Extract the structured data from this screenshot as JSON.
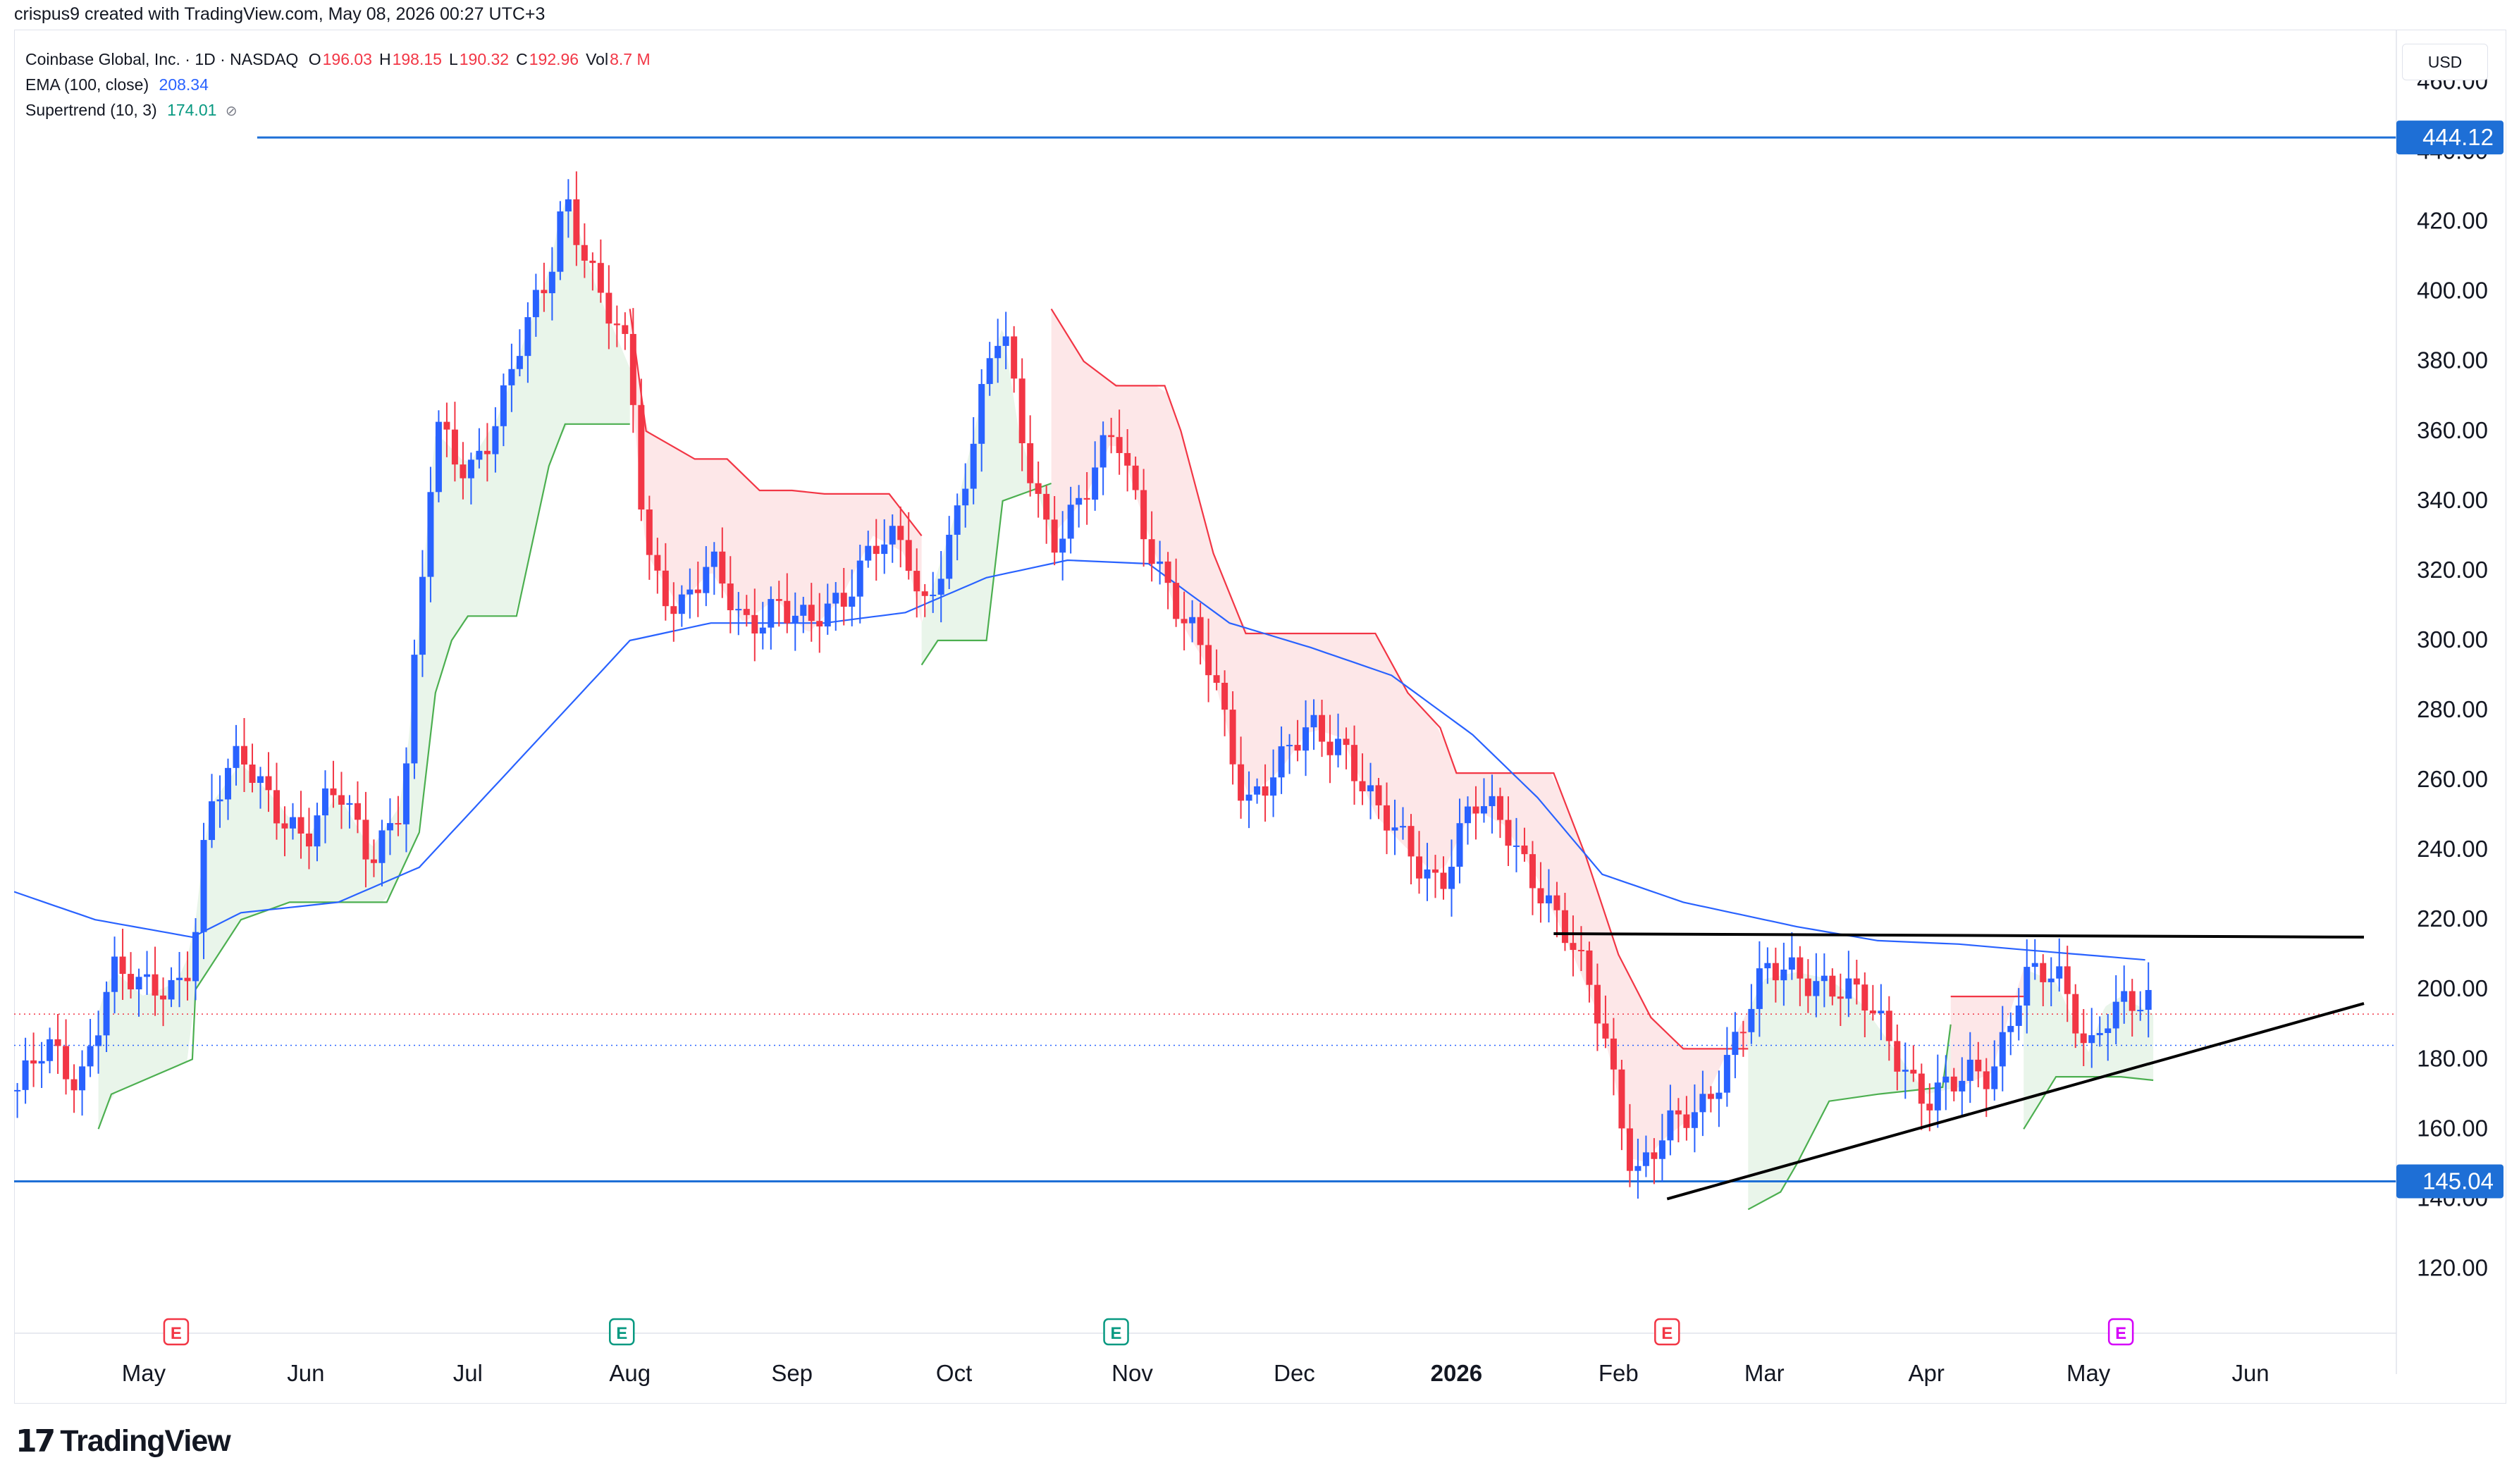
{
  "header": {
    "creator_line": "crispus9 created with TradingView.com, May 08, 2026 00:27 UTC+3"
  },
  "legend": {
    "symbol": "Coinbase Global, Inc. · 1D · NASDAQ",
    "ohlc": [
      {
        "key": "O",
        "value": "196.03"
      },
      {
        "key": "H",
        "value": "198.15"
      },
      {
        "key": "L",
        "value": "190.32"
      },
      {
        "key": "C",
        "value": "192.96"
      },
      {
        "key": "Vol",
        "value": "8.7 M"
      }
    ],
    "ema_label": "EMA (100, close)",
    "ema_value": "208.34",
    "supertrend_label": "Supertrend (10, 3)",
    "supertrend_value": "174.01",
    "eye_icon": "hidden-eye-icon"
  },
  "currency": "USD",
  "brand": {
    "mark": "17",
    "name": "TradingView"
  },
  "colors": {
    "up": "#2962ff",
    "down": "#f23645",
    "ema": "#2962ff",
    "supertrend_up": "#4caf50",
    "supertrend_down": "#f23645",
    "level_line": "#1e6fd6",
    "trend_line": "#000000",
    "earnings": "#f23645",
    "earnings_green": "#089981",
    "earnings_future": "#d500f9"
  },
  "chart_data": {
    "type": "candlestick",
    "title": "Coinbase Global, Inc. · 1D · NASDAQ",
    "ylim": [
      110,
      470
    ],
    "y_ticks": [
      "120.00",
      "140.00",
      "160.00",
      "180.00",
      "200.00",
      "220.00",
      "240.00",
      "260.00",
      "280.00",
      "300.00",
      "320.00",
      "340.00",
      "360.00",
      "380.00",
      "400.00",
      "420.00",
      "440.00",
      "460.00"
    ],
    "x_ticks": [
      {
        "label": "May",
        "x": 0.8,
        "bold": false
      },
      {
        "label": "Jun",
        "x": 1.8,
        "bold": false
      },
      {
        "label": "Jul",
        "x": 2.8,
        "bold": false
      },
      {
        "label": "Aug",
        "x": 3.8,
        "bold": false
      },
      {
        "label": "Sep",
        "x": 4.8,
        "bold": false
      },
      {
        "label": "Oct",
        "x": 5.8,
        "bold": false
      },
      {
        "label": "Nov",
        "x": 6.9,
        "bold": false
      },
      {
        "label": "Dec",
        "x": 7.9,
        "bold": false
      },
      {
        "label": "2026",
        "x": 8.9,
        "bold": true
      },
      {
        "label": "Feb",
        "x": 9.9,
        "bold": false
      },
      {
        "label": "Mar",
        "x": 10.8,
        "bold": false
      },
      {
        "label": "Apr",
        "x": 11.8,
        "bold": false
      },
      {
        "label": "May",
        "x": 12.8,
        "bold": false
      },
      {
        "label": "Jun",
        "x": 13.8,
        "bold": false
      }
    ],
    "xlim": [
      0,
      14.7
    ],
    "candle_anchors": [
      [
        0.0,
        170
      ],
      [
        0.2,
        182
      ],
      [
        0.4,
        174
      ],
      [
        0.6,
        206
      ],
      [
        0.8,
        198
      ],
      [
        1.0,
        202
      ],
      [
        1.1,
        212
      ],
      [
        1.2,
        252
      ],
      [
        1.4,
        265
      ],
      [
        1.6,
        255
      ],
      [
        1.8,
        243
      ],
      [
        2.0,
        256
      ],
      [
        2.2,
        240
      ],
      [
        2.4,
        254
      ],
      [
        2.5,
        305
      ],
      [
        2.6,
        360
      ],
      [
        2.8,
        350
      ],
      [
        3.0,
        365
      ],
      [
        3.1,
        380
      ],
      [
        3.3,
        405
      ],
      [
        3.4,
        430
      ],
      [
        3.6,
        400
      ],
      [
        3.8,
        378
      ],
      [
        3.9,
        325
      ],
      [
        4.1,
        310
      ],
      [
        4.3,
        320
      ],
      [
        4.5,
        305
      ],
      [
        4.7,
        312
      ],
      [
        4.9,
        302
      ],
      [
        5.1,
        312
      ],
      [
        5.3,
        330
      ],
      [
        5.5,
        325
      ],
      [
        5.6,
        305
      ],
      [
        5.8,
        335
      ],
      [
        6.0,
        375
      ],
      [
        6.1,
        390
      ],
      [
        6.2,
        360
      ],
      [
        6.4,
        330
      ],
      [
        6.6,
        340
      ],
      [
        6.8,
        360
      ],
      [
        7.0,
        330
      ],
      [
        7.2,
        305
      ],
      [
        7.4,
        290
      ],
      [
        7.6,
        255
      ],
      [
        7.8,
        262
      ],
      [
        8.0,
        275
      ],
      [
        8.2,
        272
      ],
      [
        8.4,
        250
      ],
      [
        8.6,
        240
      ],
      [
        8.8,
        232
      ],
      [
        9.0,
        252
      ],
      [
        9.2,
        247
      ],
      [
        9.4,
        232
      ],
      [
        9.6,
        212
      ],
      [
        9.8,
        190
      ],
      [
        10.0,
        148
      ],
      [
        10.2,
        158
      ],
      [
        10.4,
        165
      ],
      [
        10.6,
        185
      ],
      [
        10.8,
        203
      ],
      [
        11.0,
        205
      ],
      [
        11.2,
        203
      ],
      [
        11.4,
        196
      ],
      [
        11.6,
        183
      ],
      [
        11.8,
        170
      ],
      [
        12.0,
        172
      ],
      [
        12.2,
        176
      ],
      [
        12.4,
        206
      ],
      [
        12.6,
        202
      ],
      [
        12.8,
        182
      ],
      [
        12.9,
        195
      ],
      [
        13.0,
        198
      ],
      [
        13.2,
        193
      ]
    ],
    "ema_anchors": [
      [
        0.0,
        228
      ],
      [
        0.5,
        220
      ],
      [
        1.1,
        215
      ],
      [
        1.4,
        222
      ],
      [
        2.0,
        225
      ],
      [
        2.5,
        235
      ],
      [
        3.0,
        260
      ],
      [
        3.5,
        285
      ],
      [
        3.8,
        300
      ],
      [
        4.3,
        305
      ],
      [
        5.0,
        305
      ],
      [
        5.5,
        308
      ],
      [
        6.0,
        318
      ],
      [
        6.5,
        323
      ],
      [
        7.0,
        322
      ],
      [
        7.5,
        305
      ],
      [
        8.0,
        298
      ],
      [
        8.5,
        290
      ],
      [
        9.0,
        273
      ],
      [
        9.4,
        255
      ],
      [
        9.8,
        233
      ],
      [
        10.3,
        225
      ],
      [
        11.0,
        218
      ],
      [
        11.5,
        214
      ],
      [
        12.0,
        213
      ],
      [
        12.5,
        211
      ],
      [
        13.2,
        208.3
      ]
    ],
    "supertrend_segments": [
      {
        "dir": "up",
        "points": [
          [
            0.52,
            160
          ],
          [
            0.6,
            170
          ],
          [
            1.1,
            180
          ],
          [
            1.12,
            200
          ],
          [
            1.4,
            220
          ],
          [
            1.7,
            225
          ],
          [
            2.3,
            225
          ],
          [
            2.5,
            245
          ],
          [
            2.6,
            285
          ],
          [
            2.7,
            300
          ],
          [
            2.8,
            307
          ],
          [
            3.1,
            307
          ],
          [
            3.3,
            350
          ],
          [
            3.4,
            362
          ],
          [
            3.8,
            362
          ]
        ]
      },
      {
        "dir": "down",
        "points": [
          [
            3.8,
            395
          ],
          [
            3.9,
            360
          ],
          [
            4.2,
            352
          ],
          [
            4.4,
            352
          ],
          [
            4.6,
            343
          ],
          [
            4.8,
            343
          ],
          [
            5.0,
            342
          ],
          [
            5.4,
            342
          ],
          [
            5.6,
            330
          ]
        ]
      },
      {
        "dir": "up",
        "points": [
          [
            5.6,
            293
          ],
          [
            5.7,
            300
          ],
          [
            6.0,
            300
          ],
          [
            6.1,
            340
          ],
          [
            6.4,
            345
          ]
        ]
      },
      {
        "dir": "down",
        "points": [
          [
            6.4,
            395
          ],
          [
            6.6,
            380
          ],
          [
            6.8,
            373
          ],
          [
            7.1,
            373
          ],
          [
            7.2,
            360
          ],
          [
            7.4,
            325
          ],
          [
            7.6,
            302
          ],
          [
            8.4,
            302
          ],
          [
            8.6,
            285
          ],
          [
            8.8,
            275
          ],
          [
            8.9,
            262
          ],
          [
            9.5,
            262
          ],
          [
            9.7,
            238
          ],
          [
            9.9,
            210
          ],
          [
            10.1,
            192
          ],
          [
            10.3,
            183
          ],
          [
            10.7,
            183
          ]
        ]
      },
      {
        "dir": "up",
        "points": [
          [
            10.7,
            137
          ],
          [
            10.9,
            142
          ],
          [
            11.0,
            150
          ],
          [
            11.2,
            168
          ],
          [
            11.5,
            170
          ],
          [
            11.9,
            172
          ],
          [
            11.95,
            190
          ]
        ]
      },
      {
        "dir": "down",
        "points": [
          [
            11.95,
            198
          ],
          [
            12.1,
            198
          ],
          [
            12.4,
            198
          ]
        ]
      },
      {
        "dir": "up",
        "points": [
          [
            12.4,
            160
          ],
          [
            12.6,
            175
          ],
          [
            13.0,
            175
          ],
          [
            13.2,
            174
          ]
        ]
      }
    ],
    "horizontal_levels": [
      {
        "value": 444.12,
        "label": "444.12",
        "x_start": 1.5
      },
      {
        "value": 145.04,
        "label": "145.04",
        "x_start": 0
      }
    ],
    "resistance_line": [
      [
        9.5,
        216
      ],
      [
        14.5,
        215
      ]
    ],
    "support_trendline": [
      [
        10.2,
        140
      ],
      [
        14.5,
        196
      ]
    ],
    "last_close": 192.96,
    "dotted_level": 184,
    "earnings_markers": [
      {
        "x": 1.0,
        "type": "past-red",
        "letter": "E"
      },
      {
        "x": 3.75,
        "type": "past-green",
        "letter": "E"
      },
      {
        "x": 6.8,
        "type": "past-green",
        "letter": "E"
      },
      {
        "x": 10.2,
        "type": "past-red",
        "letter": "E"
      },
      {
        "x": 13.0,
        "type": "future",
        "letter": "E"
      }
    ]
  }
}
